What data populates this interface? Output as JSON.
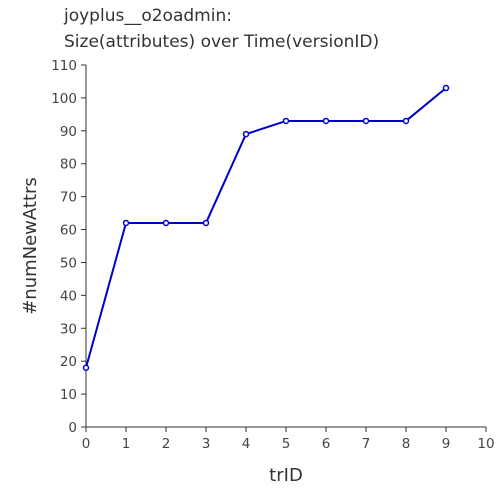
{
  "chart_data": {
    "type": "line",
    "title_lines": [
      "joyplus__o2oadmin:",
      "Size(attributes) over Time(versionID)"
    ],
    "xlabel": "trID",
    "ylabel": "#numNewAttrs",
    "xlim": [
      0,
      10
    ],
    "ylim": [
      0,
      110
    ],
    "x_ticks": [
      0,
      1,
      2,
      3,
      4,
      5,
      6,
      7,
      8,
      9,
      10
    ],
    "y_ticks": [
      0,
      10,
      20,
      30,
      40,
      50,
      60,
      70,
      80,
      90,
      100,
      110
    ],
    "grid": false,
    "series": [
      {
        "x": [
          0,
          1,
          2,
          3,
          4,
          5,
          6,
          7,
          8,
          9
        ],
        "y": [
          18,
          62,
          62,
          62,
          89,
          93,
          93,
          93,
          93,
          103
        ],
        "color": "#0000cc",
        "marker": "open-circle"
      }
    ]
  }
}
